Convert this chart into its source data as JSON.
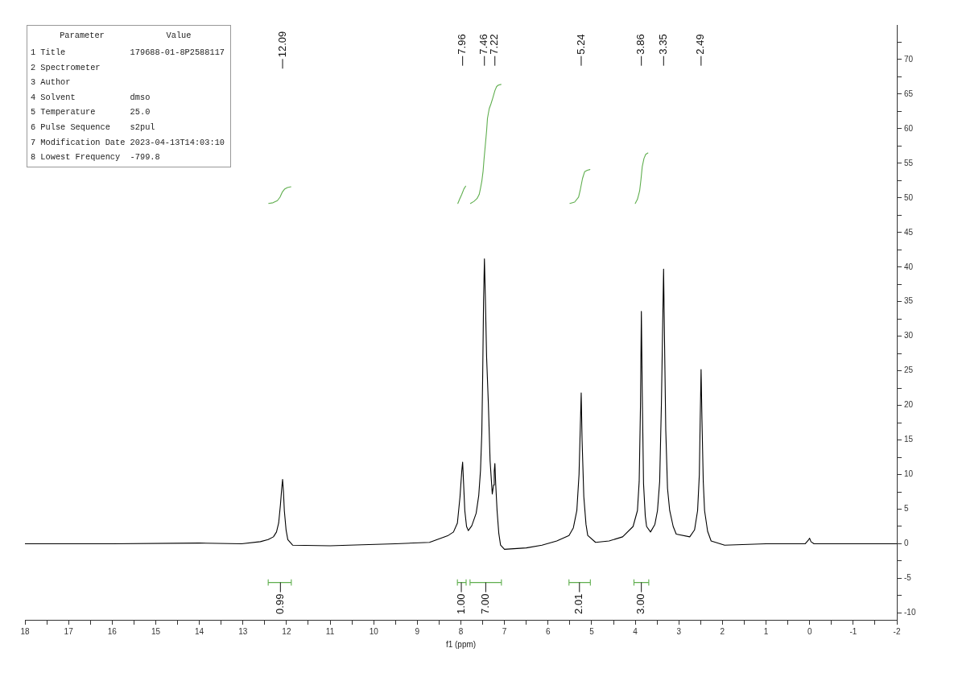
{
  "chart_data": {
    "type": "line",
    "xlabel": "f1 (ppm)",
    "xlim": [
      18,
      -2
    ],
    "xticks": [
      18,
      {
        "value": 17.5,
        "label": null
      },
      17,
      {
        "value": 16.5,
        "label": null
      },
      16,
      {
        "value": 15.5,
        "label": null
      },
      15,
      {
        "value": 14.5,
        "label": null
      },
      14,
      {
        "value": 13.5,
        "label": null
      },
      13,
      {
        "value": 12.5,
        "label": null
      },
      12,
      {
        "value": 11.5,
        "label": null
      },
      11,
      {
        "value": 10.5,
        "label": null
      },
      10,
      {
        "value": 9.5,
        "label": null
      },
      9,
      {
        "value": 8.5,
        "label": null
      },
      8,
      {
        "value": 7.5,
        "label": null
      },
      7,
      {
        "value": 6.5,
        "label": null
      },
      6,
      {
        "value": 5.5,
        "label": null
      },
      5,
      {
        "value": 4.5,
        "label": null
      },
      4,
      {
        "value": 3.5,
        "label": null
      },
      3,
      {
        "value": 2.5,
        "label": null
      },
      2,
      {
        "value": 1.5,
        "label": null
      },
      1,
      {
        "value": 0.5,
        "label": null
      },
      0,
      {
        "value": -0.5,
        "label": null
      },
      -1,
      {
        "value": -1.5,
        "label": null
      },
      -2
    ],
    "ylim": [
      -11,
      75
    ],
    "yticks": [
      -10,
      {
        "value": -7.5,
        "label": null
      },
      -5,
      {
        "value": -2.5,
        "label": null
      },
      0,
      {
        "value": 2.5,
        "label": null
      },
      5,
      {
        "value": 7.5,
        "label": null
      },
      10,
      {
        "value": 12.5,
        "label": null
      },
      15,
      {
        "value": 17.5,
        "label": null
      },
      20,
      {
        "value": 22.5,
        "label": null
      },
      25,
      {
        "value": 27.5,
        "label": null
      },
      30,
      {
        "value": 32.5,
        "label": null
      },
      35,
      {
        "value": 37.5,
        "label": null
      },
      40,
      {
        "value": 42.5,
        "label": null
      },
      45,
      {
        "value": 47.5,
        "label": null
      },
      50,
      {
        "value": 52.5,
        "label": null
      },
      55,
      {
        "value": 57.5,
        "label": null
      },
      60,
      {
        "value": 62.5,
        "label": null
      },
      65,
      {
        "value": 67.5,
        "label": null
      },
      70,
      {
        "value": 72.5,
        "label": null
      }
    ],
    "annotations": [
      "Parameter",
      "Value",
      "1 Title\t179688-01-8P2588117",
      "2 Spectrometer",
      "3 Author",
      "4 Solvent\tdmso",
      "5 Temperature\t25.0",
      "6 Pulse Sequence\ts2pul",
      "7 Modification Date\t2023-04-13T14:03:10",
      "8 Lowest Frequency\t-799.8",
      {
        "text": "12.09",
        "x": 12.09
      },
      {
        "text": "7.96",
        "x": 7.96
      },
      {
        "text": "7.46",
        "x": 7.46
      },
      {
        "text": "7.22",
        "x": 7.22
      },
      {
        "text": "5.24",
        "x": 5.24
      },
      {
        "text": "3.86",
        "x": 3.86
      },
      {
        "text": "3.35",
        "x": 3.35
      },
      {
        "text": "2.49",
        "x": 2.49
      },
      {
        "text": "0.99",
        "x": 12.14,
        "y": -5.6
      },
      {
        "text": "1.00",
        "x": 7.99,
        "y": -5.6
      },
      {
        "text": "7.00",
        "x": 7.43,
        "y": -5.6
      },
      {
        "text": "2.01",
        "x": 5.28,
        "y": -5.6
      },
      {
        "text": "3.00",
        "x": 3.86,
        "y": -5.6
      }
    ],
    "series": [
      {
        "color": "#000000",
        "x": [
          18,
          16,
          14,
          13.03,
          12.6,
          12.42,
          12.3,
          12.23,
          12.18,
          12.14,
          12.11,
          12.09,
          12.07,
          12.05,
          12.01,
          11.97,
          11.86,
          11,
          10.57,
          9.5,
          8.72,
          8.29,
          8.17,
          8.08,
          8.02,
          7.98,
          7.96,
          7.94,
          7.91,
          7.87,
          7.83,
          7.75,
          7.65,
          7.59,
          7.55,
          7.52,
          7.5,
          7.48,
          7.46,
          7.44,
          7.41,
          7.37,
          7.33,
          7.28,
          7.25,
          7.235,
          7.22,
          7.2,
          7.17,
          7.13,
          7.09,
          7,
          6.5,
          6.14,
          5.8,
          5.52,
          5.42,
          5.34,
          5.29,
          5.26,
          5.24,
          5.22,
          5.18,
          5.13,
          5.09,
          4.91,
          4.6,
          4.29,
          4.05,
          3.95,
          3.91,
          3.88,
          3.86,
          3.84,
          3.81,
          3.77,
          3.74,
          3.65,
          3.55,
          3.49,
          3.44,
          3.4,
          3.37,
          3.35,
          3.33,
          3.3,
          3.26,
          3.21,
          3.13,
          3.06,
          2.75,
          2.64,
          2.57,
          2.53,
          2.51,
          2.49,
          2.47,
          2.44,
          2.41,
          2.34,
          2.26,
          1.95,
          1,
          0.1,
          0.02,
          0,
          -0.03,
          -0.1,
          -1,
          -2
        ],
        "values": [
          0,
          0,
          0.1,
          0,
          0.3,
          0.6,
          1,
          1.7,
          3,
          5.6,
          8,
          9.3,
          7.5,
          4.8,
          2,
          0.6,
          -0.2,
          -0.3,
          -0.2,
          0,
          0.2,
          1.2,
          1.7,
          3,
          6.8,
          10.5,
          11.8,
          9,
          4.8,
          2.5,
          1.9,
          2.6,
          4.4,
          7,
          10.6,
          16,
          24.2,
          35,
          41.2,
          36,
          27,
          20.3,
          12,
          7.2,
          8.5,
          10.5,
          11.6,
          8.5,
          4.8,
          1.5,
          -0.2,
          -0.8,
          -0.6,
          -0.2,
          0.4,
          1.2,
          2.3,
          4.8,
          10,
          17,
          21.8,
          15,
          6.8,
          2.8,
          1.2,
          0.2,
          0.4,
          1,
          2.5,
          4.8,
          9,
          20,
          33.6,
          22,
          8.7,
          4,
          2.5,
          1.7,
          2.8,
          4.8,
          9,
          20.3,
          32,
          39.7,
          30,
          16.4,
          8,
          4.8,
          2.5,
          1.4,
          1,
          2,
          4.8,
          10,
          18,
          25.2,
          18,
          9,
          4.8,
          1.8,
          0.4,
          -0.2,
          0,
          0,
          0.6,
          0.8,
          0.3,
          0,
          0,
          0
        ]
      },
      {
        "color": "#5fae4e",
        "x": [
          12.41,
          12.31,
          12.21,
          12.15,
          12.1,
          12.04,
          11.98,
          11.9
        ],
        "values": [
          49.2,
          49.3,
          49.6,
          50.1,
          50.8,
          51.3,
          51.5,
          51.6
        ]
      },
      {
        "color": "#5fae4e",
        "x": [
          8.07,
          8.03,
          7.98,
          7.93,
          7.89
        ],
        "values": [
          49.2,
          49.8,
          50.5,
          51.3,
          51.7
        ]
      },
      {
        "color": "#5fae4e",
        "x": [
          7.78,
          7.7,
          7.63,
          7.58,
          7.55,
          7.52,
          7.49,
          7.47,
          7.44,
          7.41,
          7.39,
          7.35,
          7.31,
          7.27,
          7.22,
          7.18,
          7.14,
          7.08
        ],
        "values": [
          49.2,
          49.5,
          49.9,
          50.5,
          51.4,
          52.4,
          53.9,
          55.5,
          57.6,
          59.7,
          61.5,
          62.9,
          63.6,
          64.4,
          65.5,
          66.1,
          66.3,
          66.4
        ]
      },
      {
        "color": "#5fae4e",
        "x": [
          5.5,
          5.39,
          5.3,
          5.26,
          5.21,
          5.16,
          5.1,
          5.04
        ],
        "values": [
          49.2,
          49.4,
          50.1,
          51.2,
          52.8,
          53.8,
          54,
          54.1
        ]
      },
      {
        "color": "#5fae4e",
        "x": [
          4,
          3.95,
          3.9,
          3.87,
          3.84,
          3.8,
          3.76,
          3.71
        ],
        "values": [
          49.2,
          49.8,
          51,
          52.6,
          54.5,
          55.7,
          56.3,
          56.5
        ]
      },
      {
        "color": "#5fae4e",
        "x": [
          12.42,
          12.42,
          12.42,
          11.89,
          11.89,
          11.89
        ],
        "values": [
          -5.2,
          -6,
          -5.6,
          -5.6,
          -5.2,
          -6
        ]
      },
      {
        "color": "#5fae4e",
        "x": [
          8.08,
          8.08,
          8.08,
          7.88,
          7.88,
          7.88
        ],
        "values": [
          -5.2,
          -6,
          -5.6,
          -5.6,
          -5.2,
          -6
        ]
      },
      {
        "color": "#5fae4e",
        "x": [
          7.79,
          7.79,
          7.79,
          7.07,
          7.07,
          7.07
        ],
        "values": [
          -5.2,
          -6,
          -5.6,
          -5.6,
          -5.2,
          -6
        ]
      },
      {
        "color": "#5fae4e",
        "x": [
          5.52,
          5.52,
          5.52,
          5.03,
          5.03,
          5.03
        ],
        "values": [
          -5.2,
          -6,
          -5.6,
          -5.6,
          -5.2,
          -6
        ]
      },
      {
        "color": "#5fae4e",
        "x": [
          4.03,
          4.03,
          4.03,
          3.69,
          3.69,
          3.69
        ],
        "values": [
          -5.2,
          -6,
          -5.6,
          -5.6,
          -5.2,
          -6
        ]
      }
    ]
  }
}
